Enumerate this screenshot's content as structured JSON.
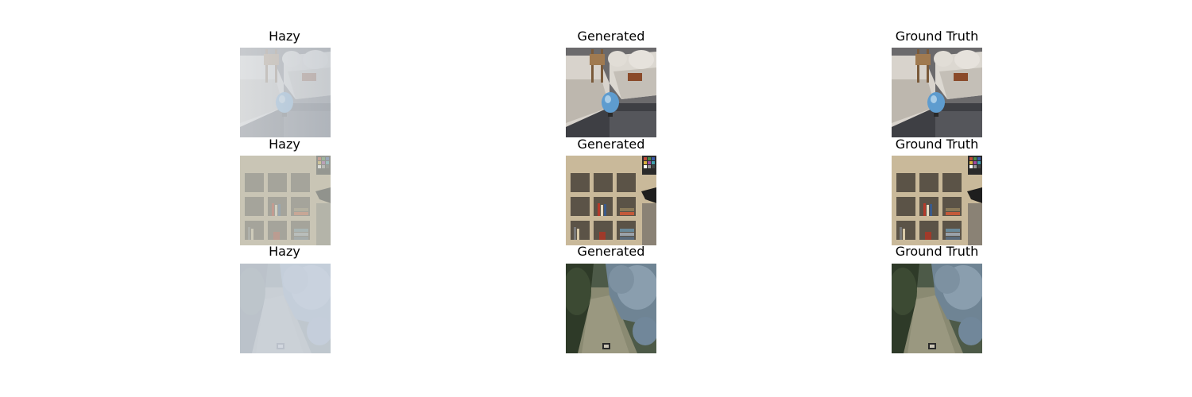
{
  "rows": [
    {
      "scene": "living-room",
      "titles": [
        "Hazy",
        "Generated",
        "Ground Truth"
      ]
    },
    {
      "scene": "bookshelf",
      "titles": [
        "Hazy",
        "Generated",
        "Ground Truth"
      ]
    },
    {
      "scene": "garden-path",
      "titles": [
        "Hazy",
        "Generated",
        "Ground Truth"
      ]
    }
  ],
  "colors": {
    "background": "#ffffff",
    "haze_overlay": "#d8dde2"
  }
}
